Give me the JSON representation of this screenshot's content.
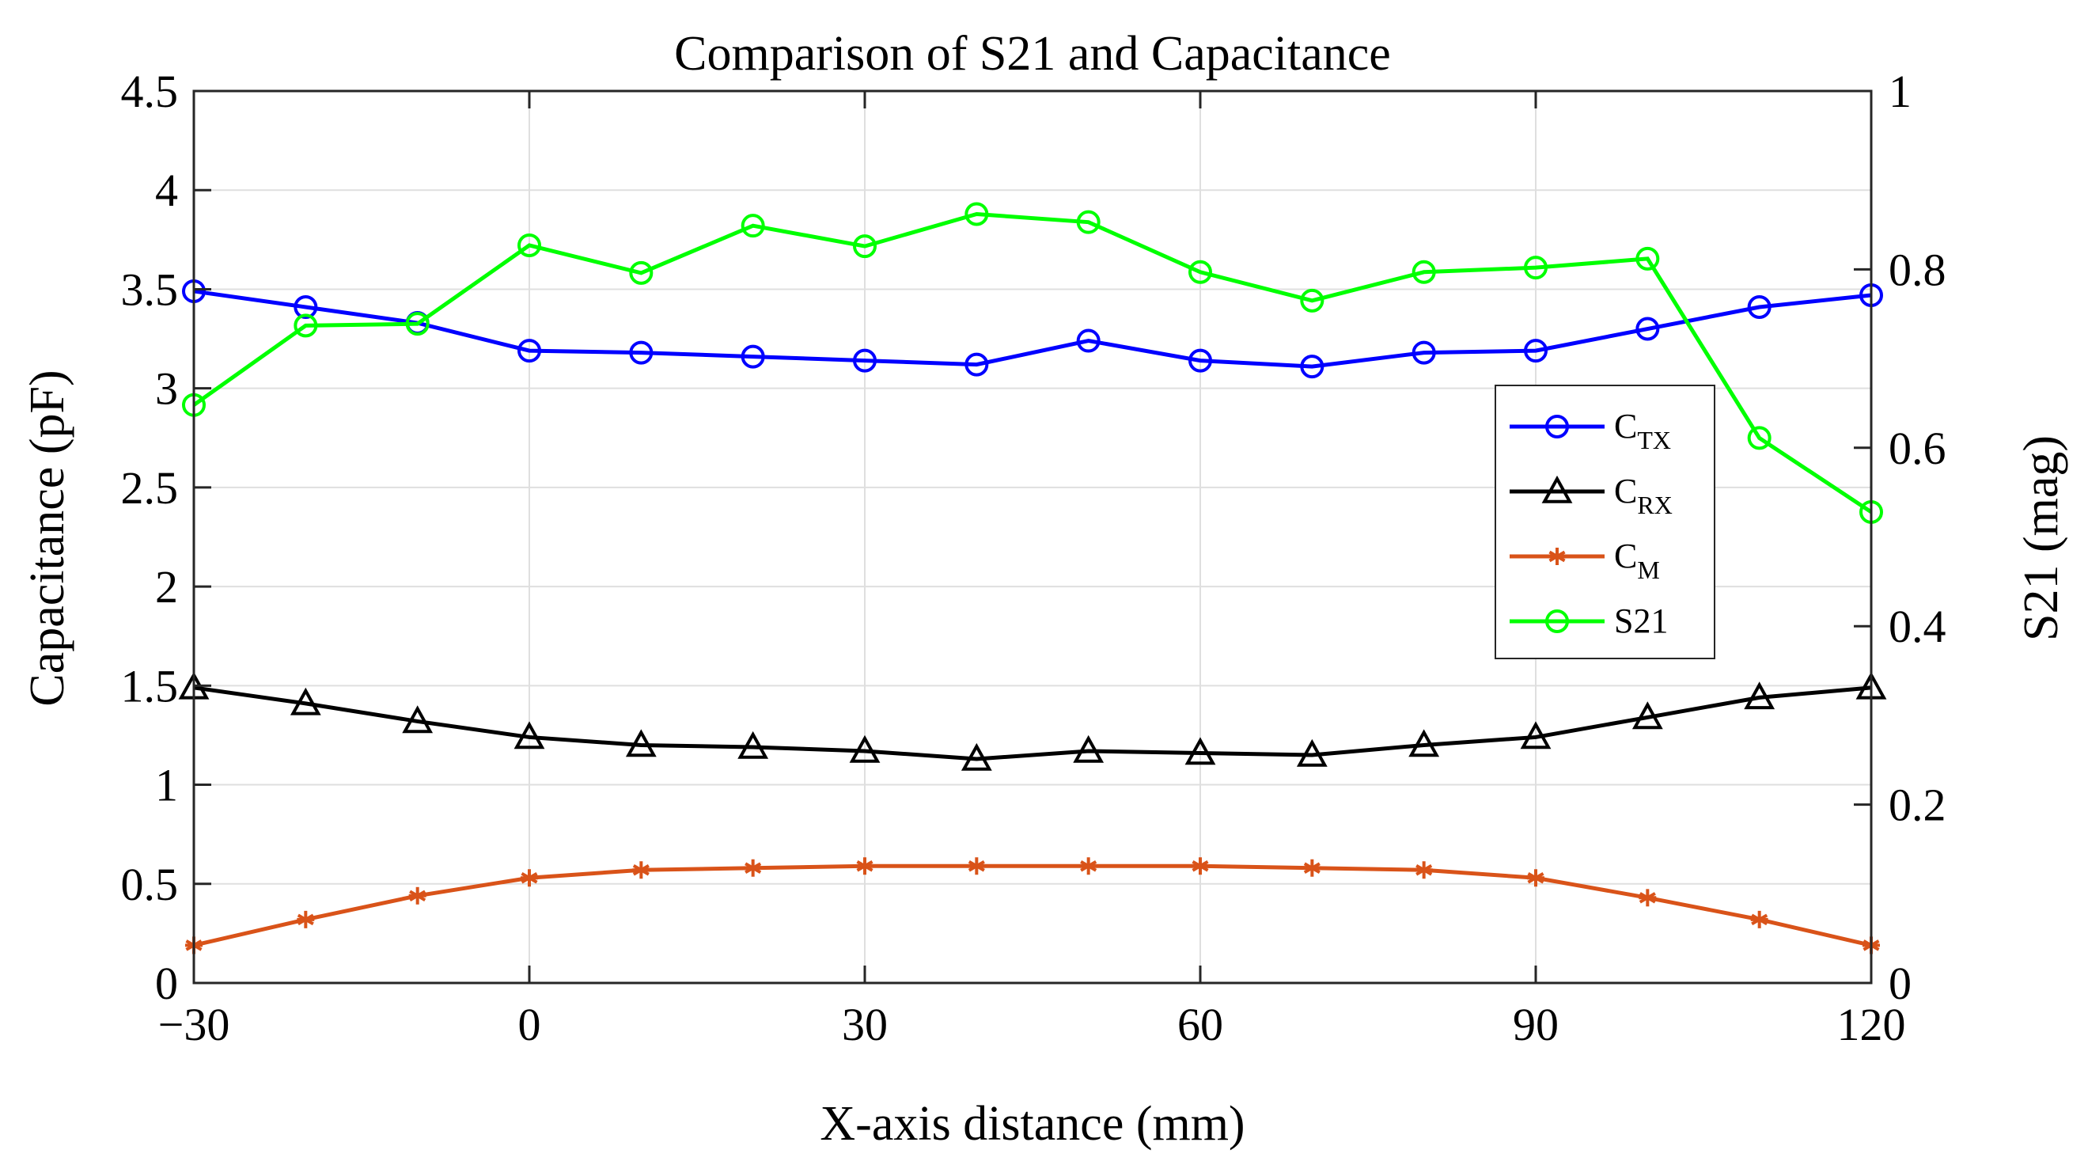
{
  "chart_data": {
    "type": "line",
    "title": "Comparison of S21 and Capacitance",
    "xlabel": "X-axis distance (mm)",
    "ylabel_left": "Capacitance (pF)",
    "ylabel_right": "S21 (mag)",
    "xlim": [
      -30,
      120
    ],
    "ylim_left": [
      0,
      4.5
    ],
    "ylim_right": [
      0,
      1
    ],
    "x_ticks": [
      -30,
      0,
      30,
      60,
      90,
      120
    ],
    "x_tick_labels": [
      "−30",
      "0",
      "30",
      "60",
      "90",
      "120"
    ],
    "y_left_ticks": [
      0,
      0.5,
      1,
      1.5,
      2,
      2.5,
      3,
      3.5,
      4,
      4.5
    ],
    "y_left_tick_labels": [
      "0",
      "0.5",
      "1",
      "1.5",
      "2",
      "2.5",
      "3",
      "3.5",
      "4",
      "4.5"
    ],
    "y_right_ticks": [
      0,
      0.2,
      0.4,
      0.6,
      0.8,
      1
    ],
    "y_right_tick_labels": [
      "0",
      "0.2",
      "0.4",
      "0.6",
      "0.8",
      "1"
    ],
    "grid": true,
    "legend_position": "right",
    "x": [
      -30,
      -20,
      -10,
      0,
      10,
      20,
      30,
      40,
      50,
      60,
      70,
      80,
      90,
      100,
      110,
      120
    ],
    "series": [
      {
        "id": "ctx",
        "name": "C",
        "subscript": "TX",
        "axis": "left",
        "color": "#0000ff",
        "marker": "circle",
        "values": [
          3.49,
          3.41,
          3.33,
          3.19,
          3.18,
          3.16,
          3.14,
          3.12,
          3.24,
          3.14,
          3.11,
          3.18,
          3.19,
          3.3,
          3.41,
          3.47
        ]
      },
      {
        "id": "crx",
        "name": "C",
        "subscript": "RX",
        "axis": "left",
        "color": "#000000",
        "marker": "triangle",
        "values": [
          1.49,
          1.41,
          1.32,
          1.24,
          1.2,
          1.19,
          1.17,
          1.13,
          1.17,
          1.16,
          1.15,
          1.2,
          1.24,
          1.34,
          1.44,
          1.49
        ]
      },
      {
        "id": "cm",
        "name": "C",
        "subscript": "M",
        "axis": "left",
        "color": "#d95319",
        "marker": "asterisk",
        "values": [
          0.19,
          0.32,
          0.44,
          0.53,
          0.57,
          0.58,
          0.59,
          0.59,
          0.59,
          0.59,
          0.58,
          0.57,
          0.53,
          0.43,
          0.32,
          0.19
        ]
      },
      {
        "id": "s21",
        "name": "S21",
        "subscript": "",
        "axis": "right",
        "color": "#00ff00",
        "marker": "circle",
        "values": [
          0.648,
          0.737,
          0.739,
          0.827,
          0.796,
          0.849,
          0.826,
          0.862,
          0.853,
          0.797,
          0.765,
          0.797,
          0.802,
          0.812,
          0.611,
          0.528
        ]
      }
    ]
  }
}
